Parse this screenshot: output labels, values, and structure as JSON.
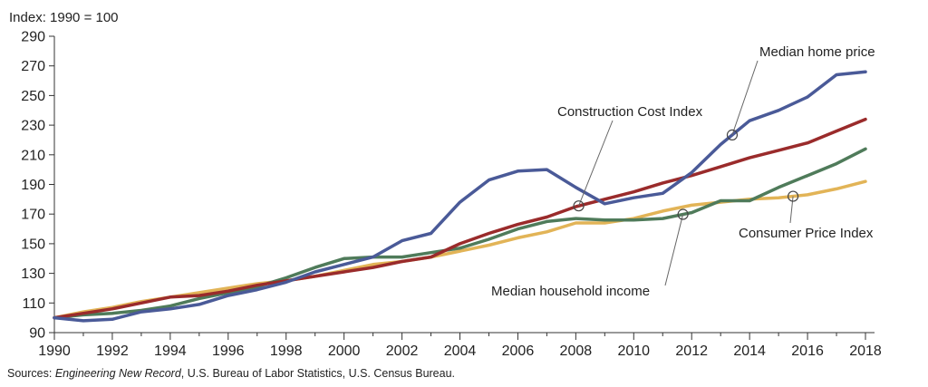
{
  "chart_data": {
    "type": "line",
    "index_note": "Index: 1990 = 100",
    "x": [
      1990,
      1991,
      1992,
      1993,
      1994,
      1995,
      1996,
      1997,
      1998,
      1999,
      2000,
      2001,
      2002,
      2003,
      2004,
      2005,
      2006,
      2007,
      2008,
      2009,
      2010,
      2011,
      2012,
      2013,
      2014,
      2015,
      2016,
      2017,
      2018
    ],
    "xticks": [
      1990,
      1992,
      1994,
      1996,
      1998,
      2000,
      2002,
      2004,
      2006,
      2008,
      2010,
      2012,
      2014,
      2016,
      2018
    ],
    "yticks": [
      90,
      110,
      130,
      150,
      170,
      190,
      210,
      230,
      250,
      270,
      290
    ],
    "xlim": [
      1990,
      2018
    ],
    "ylim": [
      90,
      290
    ],
    "series": [
      {
        "name": "Consumer Price Index",
        "color": "#e2b457",
        "values": [
          100,
          104,
          107,
          111,
          114,
          117,
          120,
          123,
          125,
          128,
          132,
          136,
          138,
          141,
          145,
          149,
          154,
          158,
          164,
          164,
          167,
          172,
          176,
          178,
          180,
          181,
          183,
          187,
          192
        ]
      },
      {
        "name": "Median household income",
        "color": "#4f7b5a",
        "values": [
          100,
          102,
          103,
          105,
          108,
          113,
          117,
          121,
          127,
          134,
          140,
          141,
          141,
          144,
          147,
          153,
          160,
          165,
          167,
          166,
          166,
          167,
          171,
          179,
          179,
          188,
          196,
          204,
          214
        ]
      },
      {
        "name": "Construction Cost Index",
        "color": "#9a2b2b",
        "values": [
          100,
          103,
          106,
          110,
          114,
          115,
          118,
          122,
          125,
          128,
          131,
          134,
          138,
          141,
          150,
          157,
          163,
          168,
          175,
          180,
          185,
          191,
          196,
          202,
          208,
          213,
          218,
          226,
          234
        ]
      },
      {
        "name": "Median home price",
        "color": "#4a5a98",
        "values": [
          100,
          98,
          99,
          104,
          106,
          109,
          115,
          119,
          124,
          131,
          136,
          141,
          152,
          157,
          178,
          193,
          199,
          200,
          188,
          177,
          181,
          184,
          198,
          217,
          233,
          240,
          249,
          264,
          266
        ]
      }
    ],
    "annotations": [
      {
        "label": "Median home price",
        "series": "Median home price",
        "year": 2013.4
      },
      {
        "label": "Construction Cost Index",
        "series": "Construction Cost Index",
        "year": 2008.1
      },
      {
        "label": "Consumer Price Index",
        "series": "Consumer Price Index",
        "year": 2015.5
      },
      {
        "label": "Median household income",
        "series": "Median household income",
        "year": 2011.7
      }
    ]
  },
  "sources": {
    "prefix": "Sources: ",
    "italic": "Engineering New Record",
    "rest": ", U.S. Bureau of Labor Statistics, U.S. Census Bureau."
  }
}
